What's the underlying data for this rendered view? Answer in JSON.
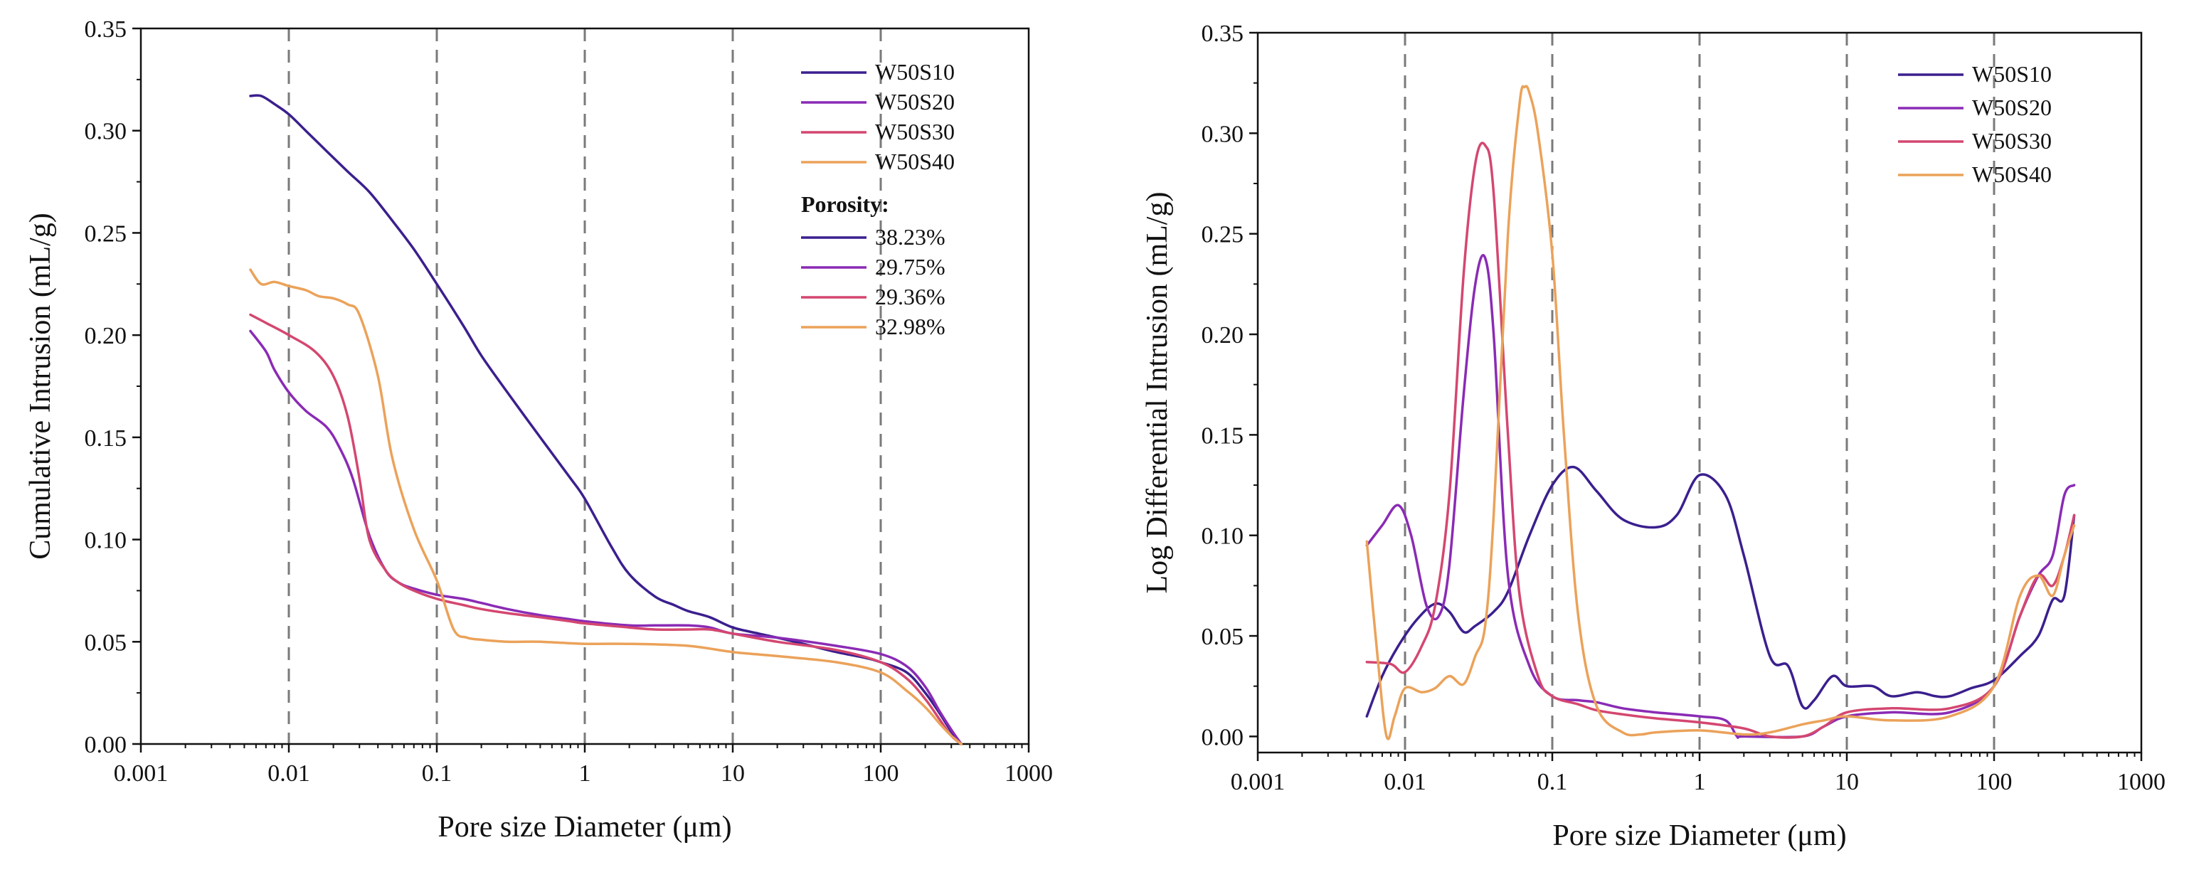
{
  "colors": {
    "W50S10": "#3b1f8e",
    "W50S20": "#8a2bb5",
    "W50S30": "#d44770",
    "W50S40": "#eba25a",
    "axis": "#111111",
    "grid": "#7a7a7a"
  },
  "chart_data": [
    {
      "type": "line",
      "id": "left",
      "title": "",
      "xlabel": "Pore size Diameter (μm)",
      "ylabel": "Cumulative Intrusion (mL/g)",
      "xscale": "log",
      "xlim": [
        0.001,
        1000
      ],
      "ylim": [
        0,
        0.35
      ],
      "x_ticks": [
        0.001,
        0.01,
        0.1,
        1,
        10,
        100,
        1000
      ],
      "x_tick_labels": [
        "0.001",
        "0.01",
        "0.1",
        "1",
        "10",
        "100",
        "1000"
      ],
      "y_ticks": [
        0,
        0.05,
        0.1,
        0.15,
        0.2,
        0.25,
        0.3,
        0.35
      ],
      "y_tick_labels": [
        "0.00",
        "0.05",
        "0.10",
        "0.15",
        "0.20",
        "0.25",
        "0.30",
        "0.35"
      ],
      "grid": "vertical dashed at decades",
      "legend": {
        "position": "top-right",
        "entries": [
          "W50S10",
          "W50S20",
          "W50S30",
          "W50S40"
        ],
        "porosity_title": "Porosity:",
        "porosity": [
          "38.23%",
          "29.75%",
          "29.36%",
          "32.98%"
        ]
      },
      "series": [
        {
          "name": "W50S10",
          "x": [
            0.0055,
            0.0065,
            0.008,
            0.01,
            0.013,
            0.018,
            0.025,
            0.035,
            0.05,
            0.07,
            0.1,
            0.15,
            0.2,
            0.3,
            0.5,
            0.8,
            1,
            1.5,
            2,
            3,
            4,
            5,
            7,
            10,
            15,
            20,
            30,
            50,
            80,
            100,
            150,
            200,
            250,
            300,
            350
          ],
          "y": [
            0.317,
            0.317,
            0.313,
            0.308,
            0.3,
            0.29,
            0.28,
            0.27,
            0.256,
            0.242,
            0.225,
            0.205,
            0.19,
            0.172,
            0.15,
            0.13,
            0.12,
            0.097,
            0.083,
            0.072,
            0.068,
            0.065,
            0.062,
            0.057,
            0.054,
            0.052,
            0.049,
            0.045,
            0.042,
            0.04,
            0.035,
            0.025,
            0.015,
            0.006,
            0.0
          ]
        },
        {
          "name": "W50S20",
          "x": [
            0.0055,
            0.007,
            0.008,
            0.01,
            0.013,
            0.018,
            0.022,
            0.027,
            0.035,
            0.045,
            0.055,
            0.07,
            0.1,
            0.15,
            0.2,
            0.3,
            0.5,
            0.8,
            1,
            2,
            3,
            5,
            7,
            10,
            20,
            50,
            100,
            150,
            200,
            250,
            300,
            350
          ],
          "y": [
            0.202,
            0.192,
            0.183,
            0.172,
            0.163,
            0.155,
            0.145,
            0.13,
            0.102,
            0.085,
            0.079,
            0.076,
            0.073,
            0.071,
            0.069,
            0.066,
            0.063,
            0.061,
            0.06,
            0.058,
            0.058,
            0.058,
            0.057,
            0.054,
            0.052,
            0.048,
            0.044,
            0.038,
            0.028,
            0.016,
            0.007,
            0.0
          ]
        },
        {
          "name": "W50S30",
          "x": [
            0.0055,
            0.007,
            0.01,
            0.015,
            0.02,
            0.025,
            0.03,
            0.035,
            0.045,
            0.055,
            0.07,
            0.1,
            0.15,
            0.2,
            0.3,
            0.5,
            0.8,
            1,
            2,
            3,
            5,
            7,
            10,
            20,
            50,
            100,
            150,
            200,
            250,
            300,
            350
          ],
          "y": [
            0.21,
            0.206,
            0.2,
            0.192,
            0.18,
            0.16,
            0.13,
            0.1,
            0.085,
            0.079,
            0.075,
            0.071,
            0.068,
            0.066,
            0.064,
            0.062,
            0.06,
            0.059,
            0.057,
            0.056,
            0.056,
            0.056,
            0.054,
            0.05,
            0.046,
            0.04,
            0.032,
            0.022,
            0.012,
            0.004,
            0.0
          ]
        },
        {
          "name": "W50S40",
          "x": [
            0.0055,
            0.0065,
            0.008,
            0.01,
            0.013,
            0.016,
            0.02,
            0.025,
            0.03,
            0.04,
            0.05,
            0.07,
            0.1,
            0.13,
            0.16,
            0.2,
            0.3,
            0.5,
            1,
            2,
            5,
            10,
            20,
            50,
            100,
            150,
            200,
            250,
            300,
            350
          ],
          "y": [
            0.232,
            0.225,
            0.226,
            0.224,
            0.222,
            0.219,
            0.218,
            0.215,
            0.21,
            0.18,
            0.14,
            0.105,
            0.08,
            0.056,
            0.052,
            0.051,
            0.05,
            0.05,
            0.049,
            0.049,
            0.048,
            0.045,
            0.043,
            0.04,
            0.035,
            0.026,
            0.018,
            0.01,
            0.004,
            0.0
          ]
        }
      ]
    },
    {
      "type": "line",
      "id": "right",
      "title": "",
      "xlabel": "Pore size Diameter (μm)",
      "ylabel": "Log Differential Intrusion (mL/g)",
      "xscale": "log",
      "xlim": [
        0.001,
        1000
      ],
      "ylim": [
        -0.008,
        0.35
      ],
      "x_ticks": [
        0.001,
        0.01,
        0.1,
        1,
        10,
        100,
        1000
      ],
      "x_tick_labels": [
        "0.001",
        "0.01",
        "0.1",
        "1",
        "10",
        "100",
        "1000"
      ],
      "y_ticks": [
        0,
        0.05,
        0.1,
        0.15,
        0.2,
        0.25,
        0.3,
        0.35
      ],
      "y_tick_labels": [
        "0.00",
        "0.05",
        "0.10",
        "0.15",
        "0.20",
        "0.25",
        "0.30",
        "0.35"
      ],
      "grid": "vertical dashed at decades",
      "legend": {
        "position": "top-right",
        "entries": [
          "W50S10",
          "W50S20",
          "W50S30",
          "W50S40"
        ]
      },
      "series": [
        {
          "name": "W50S10",
          "x": [
            0.0055,
            0.007,
            0.009,
            0.012,
            0.016,
            0.02,
            0.025,
            0.03,
            0.04,
            0.05,
            0.07,
            0.1,
            0.14,
            0.2,
            0.3,
            0.5,
            0.7,
            1,
            1.5,
            2,
            3,
            4,
            5,
            6,
            8,
            10,
            15,
            20,
            30,
            40,
            50,
            70,
            100,
            150,
            200,
            250,
            300,
            350
          ],
          "y": [
            0.01,
            0.03,
            0.045,
            0.058,
            0.066,
            0.062,
            0.052,
            0.055,
            0.062,
            0.072,
            0.1,
            0.125,
            0.134,
            0.122,
            0.108,
            0.104,
            0.11,
            0.13,
            0.12,
            0.09,
            0.04,
            0.035,
            0.015,
            0.018,
            0.03,
            0.025,
            0.025,
            0.02,
            0.022,
            0.02,
            0.02,
            0.024,
            0.028,
            0.04,
            0.05,
            0.068,
            0.07,
            0.11
          ]
        },
        {
          "name": "W50S20",
          "x": [
            0.0055,
            0.007,
            0.009,
            0.011,
            0.014,
            0.017,
            0.02,
            0.025,
            0.03,
            0.035,
            0.04,
            0.05,
            0.07,
            0.1,
            0.15,
            0.2,
            0.3,
            0.5,
            1,
            1.5,
            1.8,
            2,
            5,
            7,
            10,
            20,
            50,
            100,
            150,
            200,
            250,
            300,
            350
          ],
          "y": [
            0.095,
            0.105,
            0.115,
            0.1,
            0.065,
            0.06,
            0.085,
            0.17,
            0.225,
            0.238,
            0.2,
            0.08,
            0.035,
            0.02,
            0.018,
            0.017,
            0.014,
            0.012,
            0.01,
            0.008,
            0.0,
            0.0,
            0.0,
            0.005,
            0.01,
            0.012,
            0.012,
            0.025,
            0.06,
            0.08,
            0.09,
            0.12,
            0.125
          ]
        },
        {
          "name": "W50S30",
          "x": [
            0.0055,
            0.008,
            0.01,
            0.013,
            0.016,
            0.02,
            0.025,
            0.03,
            0.035,
            0.04,
            0.05,
            0.06,
            0.08,
            0.1,
            0.15,
            0.2,
            0.3,
            0.5,
            1,
            2,
            3,
            5,
            7,
            10,
            20,
            50,
            100,
            150,
            200,
            250,
            300,
            350
          ],
          "y": [
            0.037,
            0.036,
            0.032,
            0.045,
            0.065,
            0.12,
            0.23,
            0.285,
            0.294,
            0.27,
            0.15,
            0.07,
            0.03,
            0.02,
            0.016,
            0.013,
            0.011,
            0.009,
            0.007,
            0.004,
            0.0,
            0.0,
            0.005,
            0.012,
            0.014,
            0.014,
            0.025,
            0.06,
            0.08,
            0.075,
            0.09,
            0.11
          ]
        },
        {
          "name": "W50S40",
          "x": [
            0.0055,
            0.0065,
            0.0075,
            0.0085,
            0.01,
            0.013,
            0.016,
            0.02,
            0.025,
            0.03,
            0.035,
            0.04,
            0.05,
            0.06,
            0.065,
            0.07,
            0.08,
            0.1,
            0.12,
            0.15,
            0.2,
            0.3,
            0.4,
            0.5,
            1,
            2,
            3,
            5,
            7,
            10,
            20,
            50,
            100,
            150,
            200,
            250,
            300,
            350
          ],
          "y": [
            0.097,
            0.04,
            0.0,
            0.01,
            0.024,
            0.022,
            0.024,
            0.03,
            0.026,
            0.04,
            0.055,
            0.11,
            0.25,
            0.315,
            0.323,
            0.32,
            0.3,
            0.24,
            0.15,
            0.06,
            0.015,
            0.002,
            0.001,
            0.002,
            0.003,
            0.001,
            0.002,
            0.006,
            0.008,
            0.01,
            0.008,
            0.01,
            0.025,
            0.07,
            0.08,
            0.07,
            0.09,
            0.105
          ]
        }
      ]
    }
  ]
}
